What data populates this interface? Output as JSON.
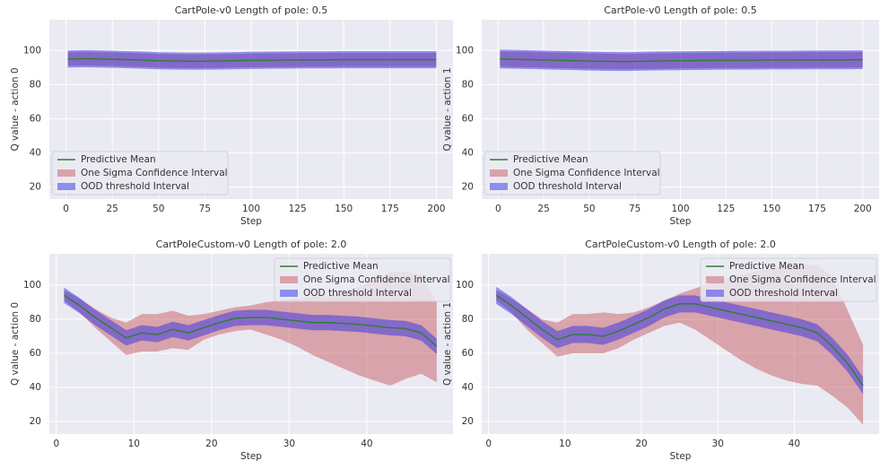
{
  "chart_data": [
    {
      "type": "line",
      "title": "CartPole-v0 Length of pole: 0.5",
      "xlabel": "Step",
      "ylabel": "Q value - action 0",
      "x": [
        1,
        10,
        20,
        30,
        40,
        50,
        60,
        70,
        80,
        90,
        100,
        110,
        120,
        130,
        140,
        150,
        160,
        170,
        180,
        190,
        200
      ],
      "series": [
        {
          "name": "Predictive Mean",
          "color": "#2e7d32",
          "values": [
            95,
            95.2,
            95,
            94.7,
            94.4,
            94,
            93.8,
            93.7,
            93.8,
            94,
            94.2,
            94.3,
            94.4,
            94.5,
            94.5,
            94.6,
            94.6,
            94.6,
            94.6,
            94.6,
            94.6
          ]
        },
        {
          "name": "One Sigma Confidence Interval",
          "color": "#c44e52",
          "lower": [
            91,
            91.2,
            91,
            90.7,
            90.4,
            90,
            89.8,
            89.7,
            89.8,
            90,
            90.2,
            90.3,
            90.4,
            90.5,
            90.5,
            90.6,
            90.6,
            90.6,
            90.6,
            90.6,
            90.6
          ],
          "upper": [
            99,
            99.2,
            99,
            98.7,
            98.4,
            98,
            97.8,
            97.7,
            97.8,
            98,
            98.2,
            98.3,
            98.4,
            98.5,
            98.5,
            98.6,
            98.6,
            98.6,
            98.6,
            98.6,
            98.6
          ]
        },
        {
          "name": "OOD threshold Interval",
          "color": "#3030e8",
          "lower": [
            90,
            90.2,
            90,
            89.7,
            89.4,
            89,
            88.8,
            88.7,
            88.8,
            89,
            89.2,
            89.3,
            89.4,
            89.5,
            89.5,
            89.6,
            89.6,
            89.6,
            89.6,
            89.6,
            89.6
          ],
          "upper": [
            100,
            100.2,
            100,
            99.7,
            99.4,
            99,
            98.8,
            98.7,
            98.8,
            99,
            99.2,
            99.3,
            99.4,
            99.5,
            99.5,
            99.6,
            99.6,
            99.6,
            99.6,
            99.6,
            99.6
          ]
        }
      ],
      "xlim": [
        -9,
        209
      ],
      "ylim": [
        13,
        118
      ],
      "xticks": [
        0,
        25,
        50,
        75,
        100,
        125,
        150,
        175,
        200
      ],
      "yticks": [
        20,
        40,
        60,
        80,
        100
      ],
      "grid": true,
      "legend": "lower left"
    },
    {
      "type": "line",
      "title": "CartPole-v0 Length of pole: 0.5",
      "xlabel": "Step",
      "ylabel": "Q value - action 1",
      "x": [
        1,
        10,
        20,
        30,
        40,
        50,
        60,
        70,
        80,
        90,
        100,
        110,
        120,
        130,
        140,
        150,
        160,
        170,
        180,
        190,
        200
      ],
      "series": [
        {
          "name": "Predictive Mean",
          "color": "#2e7d32",
          "values": [
            95,
            94.8,
            94.6,
            94.3,
            94.1,
            93.8,
            93.6,
            93.5,
            93.7,
            93.9,
            94,
            94.1,
            94.2,
            94.3,
            94.3,
            94.4,
            94.4,
            94.5,
            94.5,
            94.5,
            94.6
          ]
        },
        {
          "name": "One Sigma Confidence Interval",
          "color": "#c44e52",
          "lower": [
            90.5,
            90.3,
            90.1,
            89.8,
            89.6,
            89.3,
            89.1,
            89,
            89.2,
            89.4,
            89.5,
            89.6,
            89.7,
            89.8,
            89.8,
            89.9,
            89.9,
            90,
            90,
            90,
            90.1
          ],
          "upper": [
            99.5,
            99.3,
            99.1,
            98.8,
            98.6,
            98.3,
            98.1,
            98,
            98.2,
            98.4,
            98.5,
            98.6,
            98.7,
            98.8,
            98.8,
            98.9,
            98.9,
            99,
            99,
            99,
            99.1
          ]
        },
        {
          "name": "OOD threshold Interval",
          "color": "#3030e8",
          "lower": [
            89.5,
            89.3,
            89.1,
            88.8,
            88.6,
            88.3,
            88.1,
            88,
            88.2,
            88.4,
            88.5,
            88.6,
            88.7,
            88.8,
            88.8,
            88.9,
            88.9,
            89,
            89,
            89,
            89.1
          ],
          "upper": [
            100.5,
            100.3,
            100.1,
            99.8,
            99.6,
            99.3,
            99.1,
            99,
            99.2,
            99.4,
            99.5,
            99.6,
            99.7,
            99.8,
            99.8,
            99.9,
            99.9,
            100,
            100,
            100,
            100.1
          ]
        }
      ],
      "xlim": [
        -9,
        209
      ],
      "ylim": [
        13,
        118
      ],
      "xticks": [
        0,
        25,
        50,
        75,
        100,
        125,
        150,
        175,
        200
      ],
      "yticks": [
        20,
        40,
        60,
        80,
        100
      ],
      "grid": true,
      "legend": "lower left"
    },
    {
      "type": "line",
      "title": "CartPoleCustom-v0 Length of pole: 2.0",
      "xlabel": "Step",
      "ylabel": "Q value - action 0",
      "x": [
        1,
        3,
        5,
        7,
        9,
        11,
        13,
        15,
        17,
        19,
        21,
        23,
        25,
        27,
        29,
        31,
        33,
        35,
        37,
        39,
        41,
        43,
        45,
        47,
        49
      ],
      "series": [
        {
          "name": "Predictive Mean",
          "color": "#2e7d32",
          "values": [
            94,
            88,
            81,
            75,
            69,
            72,
            71,
            74,
            72,
            75,
            78,
            80.5,
            81,
            81,
            80,
            79,
            78,
            78,
            77.5,
            77,
            76,
            75,
            74.5,
            72,
            64
          ]
        },
        {
          "name": "One Sigma Confidence Interval",
          "color": "#c44e52",
          "lower": [
            91,
            84,
            75,
            67,
            59,
            61,
            61,
            63,
            62,
            68,
            71,
            73,
            74,
            71,
            68,
            64,
            59,
            55,
            51,
            47,
            44,
            41,
            45,
            48,
            43
          ],
          "upper": [
            97,
            92,
            86,
            81,
            78,
            83,
            83,
            85,
            82,
            83,
            85,
            87,
            88,
            90,
            91,
            92,
            93,
            94,
            96,
            99,
            103,
            108,
            108,
            106,
            90
          ]
        },
        {
          "name": "OOD threshold Interval",
          "color": "#3030e8",
          "lower": [
            89.5,
            83.5,
            76.5,
            70.5,
            64.5,
            67.5,
            66.5,
            69.5,
            67.5,
            70.5,
            73.5,
            76,
            76.5,
            76.5,
            75.5,
            74.5,
            73.5,
            73.5,
            73,
            72.5,
            71.5,
            70.5,
            70,
            67.5,
            59.5
          ],
          "upper": [
            98.5,
            92.5,
            85.5,
            79.5,
            73.5,
            76.5,
            75.5,
            78.5,
            76.5,
            79.5,
            82.5,
            85,
            85.5,
            85.5,
            84.5,
            83.5,
            82.5,
            82.5,
            82,
            81.5,
            80.5,
            79.5,
            79,
            76.5,
            68.5
          ]
        }
      ],
      "xlim": [
        -0.9,
        51.1
      ],
      "ylim": [
        12.6,
        118.4
      ],
      "xticks": [
        0,
        10,
        20,
        30,
        40
      ],
      "yticks": [
        20,
        40,
        60,
        80,
        100
      ],
      "grid": true,
      "legend": "upper right"
    },
    {
      "type": "line",
      "title": "CartPoleCustom-v0 Length of pole: 2.0",
      "xlabel": "Step",
      "ylabel": "Q value - action 1",
      "x": [
        1,
        3,
        5,
        7,
        9,
        11,
        13,
        15,
        17,
        19,
        21,
        23,
        25,
        27,
        29,
        31,
        33,
        35,
        37,
        39,
        41,
        43,
        45,
        47,
        49
      ],
      "series": [
        {
          "name": "Predictive Mean",
          "color": "#2e7d32",
          "values": [
            94,
            88,
            81,
            74,
            68,
            71,
            71,
            70,
            73,
            77,
            81,
            86,
            89,
            89,
            87,
            85,
            83,
            81,
            79,
            77,
            75,
            72,
            64,
            54,
            41
          ]
        },
        {
          "name": "One Sigma Confidence Interval",
          "color": "#c44e52",
          "lower": [
            91,
            84,
            74,
            66,
            58,
            60,
            60,
            60,
            63,
            68,
            72,
            76,
            78,
            74,
            68,
            62,
            56,
            51,
            47,
            44,
            42,
            41,
            35,
            28,
            18
          ],
          "upper": [
            97,
            92,
            86,
            80,
            78,
            83,
            83,
            84,
            83,
            84,
            87,
            91,
            95,
            98,
            101,
            104,
            106,
            108,
            110,
            111,
            112,
            112,
            105,
            85,
            65
          ]
        },
        {
          "name": "OOD threshold Interval",
          "color": "#3030e8",
          "lower": [
            89,
            83,
            76,
            69,
            63,
            66,
            66,
            65,
            68,
            72,
            76,
            81,
            84,
            84,
            82,
            80,
            78,
            76,
            74,
            72,
            70,
            67,
            59,
            49,
            36
          ],
          "upper": [
            99,
            93,
            86,
            79,
            73,
            76,
            76,
            75,
            78,
            82,
            86,
            91,
            94,
            94,
            92,
            90,
            88,
            86,
            84,
            82,
            80,
            77,
            69,
            59,
            46
          ]
        }
      ],
      "xlim": [
        -0.9,
        51.1
      ],
      "ylim": [
        12.6,
        118.4
      ],
      "xticks": [
        0,
        10,
        20,
        30,
        40
      ],
      "yticks": [
        20,
        40,
        60,
        80,
        100
      ],
      "grid": true,
      "legend": "upper right"
    }
  ]
}
